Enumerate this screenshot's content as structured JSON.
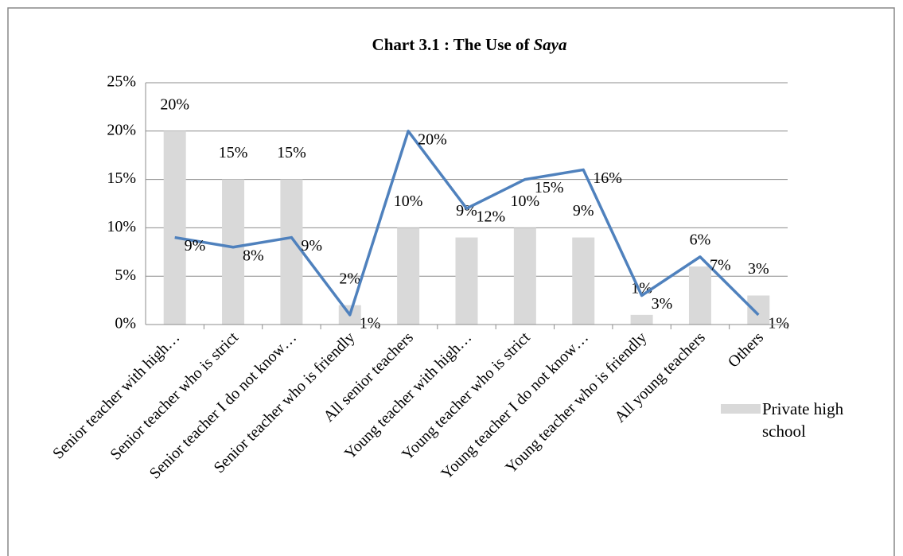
{
  "chart_data": {
    "type": "bar-line",
    "title": "Chart 3.1 : The Use of",
    "title_emphasis": "Saya",
    "categories": [
      "Senior teacher with high…",
      "Senior teacher who is strict",
      "Senior teacher I do not know…",
      "Senior teacher who is friendly",
      "All senior teachers",
      "Young teacher with high…",
      "Young teacher who is strict",
      "Young teacher I do not know…",
      "Young teacher who is friendly",
      "All young teachers",
      "Others"
    ],
    "series": [
      {
        "name": "Private high school",
        "type": "bar",
        "color": "#d9d9d9",
        "values": [
          20,
          15,
          15,
          2,
          10,
          9,
          10,
          9,
          1,
          6,
          3
        ],
        "value_labels": [
          "20%",
          "15%",
          "15%",
          "2%",
          "10%",
          "9%",
          "10%",
          "9%",
          "1%",
          "6%",
          "3%"
        ]
      },
      {
        "type": "line",
        "color": "#4f81bd",
        "values": [
          9,
          8,
          9,
          1,
          20,
          12,
          15,
          16,
          3,
          7,
          1
        ],
        "value_labels": [
          "9%",
          "8%",
          "9%",
          "1%",
          "20%",
          "12%",
          "15%",
          "16%",
          "3%",
          "7%",
          "1%"
        ]
      }
    ],
    "ylim": [
      0,
      25
    ],
    "yticks": [
      {
        "value": 0,
        "label": "0%"
      },
      {
        "value": 5,
        "label": "5%"
      },
      {
        "value": 10,
        "label": "10%"
      },
      {
        "value": 15,
        "label": "15%"
      },
      {
        "value": 20,
        "label": "20%"
      },
      {
        "value": 25,
        "label": "25%"
      }
    ],
    "grid": true,
    "legend": "right"
  }
}
